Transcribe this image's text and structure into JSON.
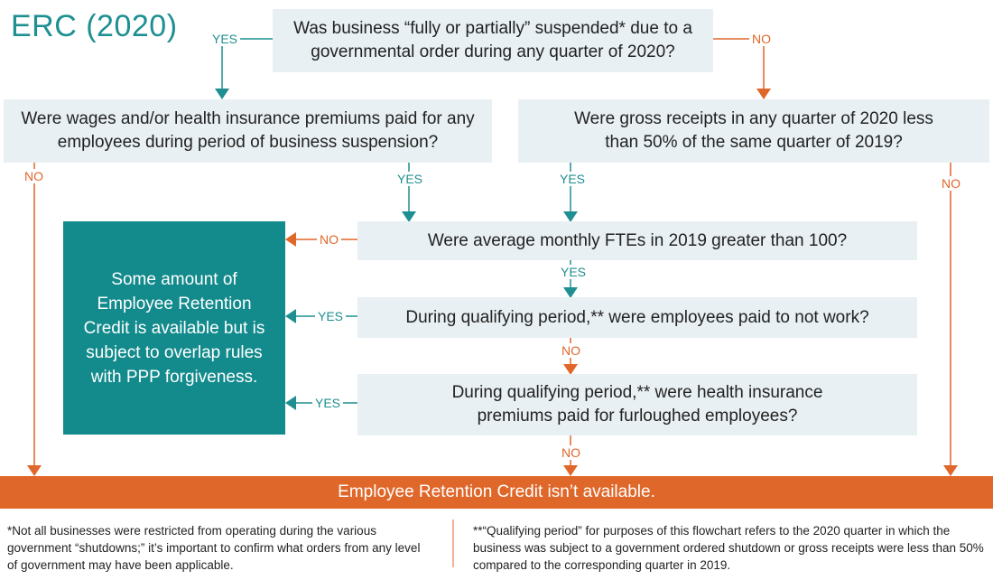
{
  "title": "ERC (2020)",
  "nodes": {
    "q_suspended": "Was business “fully or partially” suspended* due to a governmental order during any quarter of 2020?",
    "q_wages": "Were wages and/or health insurance premiums paid for any employees during period of business suspension?",
    "q_receipts": "Were gross receipts in any quarter of 2020 less than 50% of the same quarter of 2019?",
    "q_ftes": "Were average monthly FTEs in 2019 greater than 100?",
    "q_paid_not_work": "During qualifying period,** were employees paid to not work?",
    "q_health": "During qualifying period,** were health insurance premiums paid for furloughed employees?",
    "result_available": "Some amount of Employee Retention Credit is available but is subject to overlap rules with PPP forgiveness.",
    "result_unavailable": "Employee Retention Credit isn’t available."
  },
  "edges": {
    "yes": "YES",
    "no": "NO"
  },
  "colors": {
    "teal": "#138a8c",
    "orange": "#e0672a",
    "box_fill": "#e8f0f3"
  },
  "footnotes": {
    "single": "*Not all businesses were restricted from operating during the various government “shutdowns;” it’s important to confirm what orders from any level of government may have been applicable.",
    "double": "**“Qualifying period” for purposes of this flowchart refers to the 2020 quarter in which the business was subject to a government ordered shutdown or gross receipts were less than 50% compared to the corresponding quarter in 2019."
  }
}
